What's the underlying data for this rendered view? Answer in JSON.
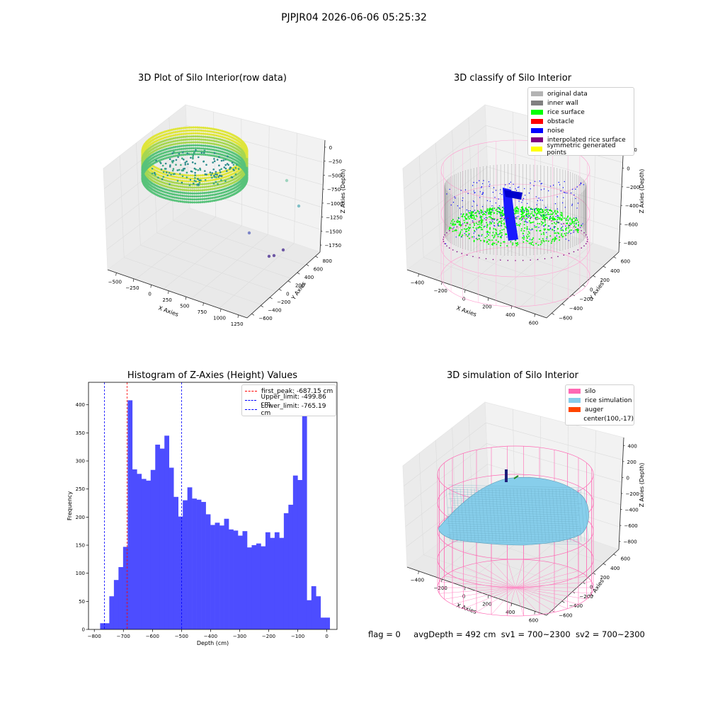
{
  "suptitle": "PJPJR04 2026-06-06 05:25:32",
  "panels": {
    "raw": {
      "title": "3D Plot of Silo Interior(row data)",
      "xlabel": "X Axies",
      "ylabel": "Y Axies",
      "zlabel": "Z Axies (Depth)",
      "xticks": [
        "−500",
        "−250",
        "0",
        "250",
        "500",
        "750",
        "1000",
        "1250"
      ],
      "yticks": [
        "800",
        "600",
        "400",
        "200",
        "0",
        "−200",
        "−400",
        "−600"
      ],
      "zticks": [
        "0",
        "−250",
        "−500",
        "−750",
        "−1000",
        "−1250",
        "−1500",
        "−1750"
      ]
    },
    "classify": {
      "title": "3D classify of Silo Interior",
      "xlabel": "X Axies",
      "ylabel": "Y Axies",
      "zlabel": "Z Axies (Depth)",
      "xticks": [
        "−400",
        "−200",
        "0",
        "200",
        "400",
        "600"
      ],
      "yticks": [
        "600",
        "400",
        "200",
        "0",
        "−200",
        "−400",
        "−600"
      ],
      "zticks": [
        "200",
        "0",
        "−200",
        "−400",
        "−600",
        "−800"
      ],
      "zticks_hidden_top": "400",
      "legend": [
        {
          "label": "original data",
          "color": "#b3b3b3"
        },
        {
          "label": "inner wall",
          "color": "#808080"
        },
        {
          "label": "rice surface",
          "color": "#00ff00"
        },
        {
          "label": "obstacle",
          "color": "#ff0000"
        },
        {
          "label": "noise",
          "color": "#0000ff"
        },
        {
          "label": "interpolated rice surface",
          "color": "#800080"
        },
        {
          "label": "symmetric generated points",
          "color": "#ffff00"
        }
      ]
    },
    "hist": {
      "title": "Histogram of Z-Axies (Height) Values",
      "legend": [
        {
          "label": "first_peak: -687.15 cm",
          "color": "#ff0000"
        },
        {
          "label": "Upper_limit: -499.86 cm",
          "color": "#0000ff"
        },
        {
          "label": "Lower_limit: -765.19 cm",
          "color": "#0000ff"
        }
      ]
    },
    "sim": {
      "title": "3D simulation of Silo Interior",
      "xlabel": "X Axies",
      "ylabel": "Y Axies",
      "zlabel": "Z Axies (Depth)",
      "xticks": [
        "−400",
        "−200",
        "0",
        "200",
        "400",
        "600"
      ],
      "yticks": [
        "600",
        "400",
        "200",
        "0",
        "−200",
        "−400",
        "−600"
      ],
      "zticks": [
        "400",
        "200",
        "0",
        "−200",
        "−400",
        "−600",
        "−800"
      ],
      "legend": [
        {
          "label": "silo",
          "color": "#ff69b4"
        },
        {
          "label": "rice simulation",
          "color": "#87ceeb"
        },
        {
          "label": "auger",
          "color": "#ff4500"
        },
        {
          "label": "center(100,-17)",
          "color": ""
        }
      ]
    }
  },
  "footer": {
    "flag": "flag = 0",
    "avg": "avgDepth = 492 cm",
    "sv1": "sv1 = 700~2300",
    "sv2": "sv2 = 700~2300"
  },
  "chart_data": [
    {
      "type": "scatter",
      "title": "3D Plot of Silo Interior(row data)",
      "xlabel": "X Axies",
      "ylabel": "Y Axies",
      "zlabel": "Z Axies (Depth)",
      "xlim": [
        -600,
        1350
      ],
      "ylim": [
        -650,
        850
      ],
      "zlim": [
        -1800,
        50
      ]
    },
    {
      "type": "scatter",
      "title": "3D classify of Silo Interior",
      "xlabel": "X Axies",
      "ylabel": "Y Axies",
      "zlabel": "Z Axies (Depth)",
      "series": [
        {
          "name": "original data"
        },
        {
          "name": "inner wall"
        },
        {
          "name": "rice surface"
        },
        {
          "name": "obstacle"
        },
        {
          "name": "noise"
        },
        {
          "name": "interpolated rice surface"
        },
        {
          "name": "symmetric generated points"
        }
      ]
    },
    {
      "type": "bar",
      "title": "Histogram of Z-Axies (Height) Values",
      "xlabel": "Depth (cm)",
      "ylabel": "Frequency",
      "xlim": [
        -820,
        35
      ],
      "ylim": [
        0,
        440
      ],
      "xticks": [
        -800,
        -700,
        -600,
        -500,
        -400,
        -300,
        -200,
        -100,
        0
      ],
      "yticks": [
        0,
        50,
        100,
        150,
        200,
        250,
        300,
        350,
        400
      ],
      "bin_start": -780,
      "bin_width": 15.8,
      "values": [
        11,
        11,
        59,
        88,
        111,
        147,
        408,
        285,
        277,
        268,
        265,
        284,
        329,
        322,
        345,
        288,
        236,
        201,
        230,
        253,
        233,
        231,
        227,
        205,
        186,
        190,
        185,
        197,
        178,
        176,
        167,
        175,
        146,
        150,
        153,
        148,
        173,
        163,
        173,
        163,
        207,
        222,
        274,
        266,
        419,
        52,
        77,
        59,
        21,
        21
      ],
      "vlines": [
        {
          "name": "first_peak: -687.15 cm",
          "x": -687.15,
          "color": "#ff0000"
        },
        {
          "name": "Upper_limit: -499.86 cm",
          "x": -499.86,
          "color": "#0000ff"
        },
        {
          "name": "Lower_limit: -765.19 cm",
          "x": -765.19,
          "color": "#0000ff"
        }
      ]
    },
    {
      "type": "area",
      "title": "3D simulation of Silo Interior",
      "xlabel": "X Axies",
      "ylabel": "Y Axies",
      "zlabel": "Z Axies (Depth)",
      "series": [
        {
          "name": "silo"
        },
        {
          "name": "rice simulation"
        },
        {
          "name": "auger"
        },
        {
          "name": "center(100,-17)"
        }
      ]
    }
  ]
}
